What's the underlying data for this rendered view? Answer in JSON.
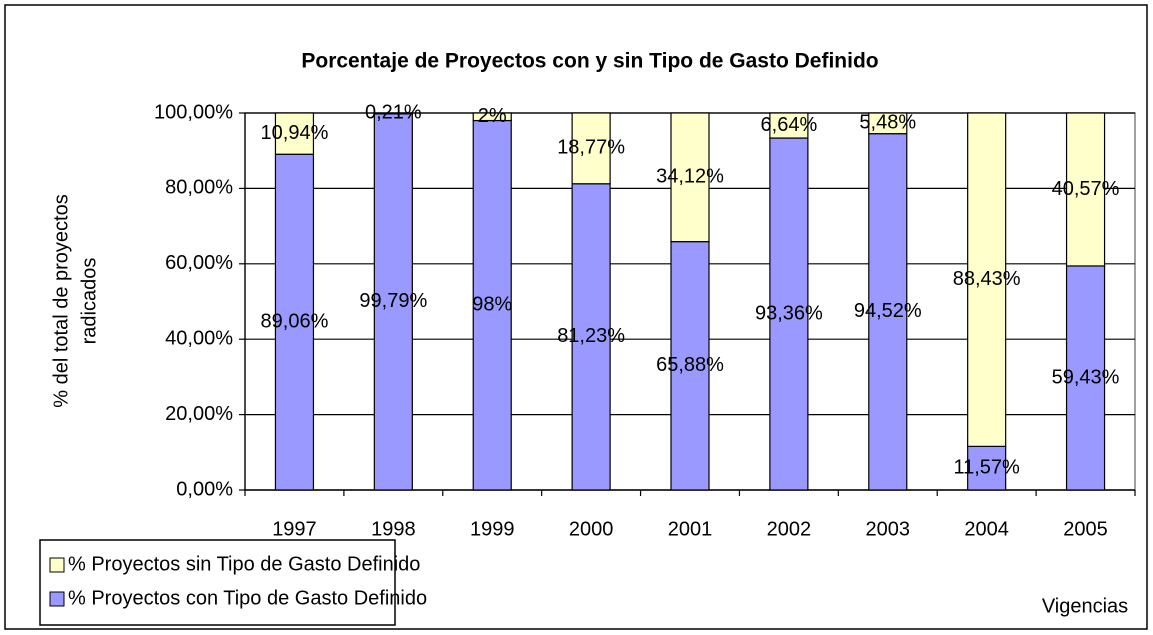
{
  "chart_data": {
    "type": "stacked_bar",
    "title": "Porcentaje de Proyectos con y sin Tipo de Gasto Definido",
    "y_label": [
      "% del total de proyectos",
      "radicados"
    ],
    "x_label": "Vigencias",
    "categories": [
      "1997",
      "1998",
      "1999",
      "2000",
      "2001",
      "2002",
      "2003",
      "2004",
      "2005"
    ],
    "series": [
      {
        "name": "% Proyectos con Tipo de Gasto Definido",
        "color": "#9999ff",
        "values": [
          89.06,
          99.79,
          98,
          81.23,
          65.88,
          93.36,
          94.52,
          11.57,
          59.43
        ],
        "value_labels": [
          "89,06%",
          "99,79%",
          "98%",
          "81,23%",
          "65,88%",
          "93,36%",
          "94,52%",
          "11,57%",
          "59,43%"
        ]
      },
      {
        "name": "% Proyectos sin Tipo de Gasto Definido",
        "color": "#ffffcc",
        "values": [
          10.94,
          0.21,
          2,
          18.77,
          34.12,
          6.64,
          5.48,
          88.43,
          40.57
        ],
        "value_labels": [
          "10,94%",
          "0,21%",
          "2%",
          "18,77%",
          "34,12%",
          "6,64%",
          "5,48%",
          "88,43%",
          "40,57%"
        ]
      }
    ],
    "ylim": [
      0,
      100
    ],
    "yticks": [
      {
        "value": 0,
        "label": "0,00%"
      },
      {
        "value": 20,
        "label": "20,00%"
      },
      {
        "value": 40,
        "label": "40,00%"
      },
      {
        "value": 60,
        "label": "60,00%"
      },
      {
        "value": 80,
        "label": "80,00%"
      },
      {
        "value": 100,
        "label": "100,00%"
      }
    ],
    "grid": true
  }
}
